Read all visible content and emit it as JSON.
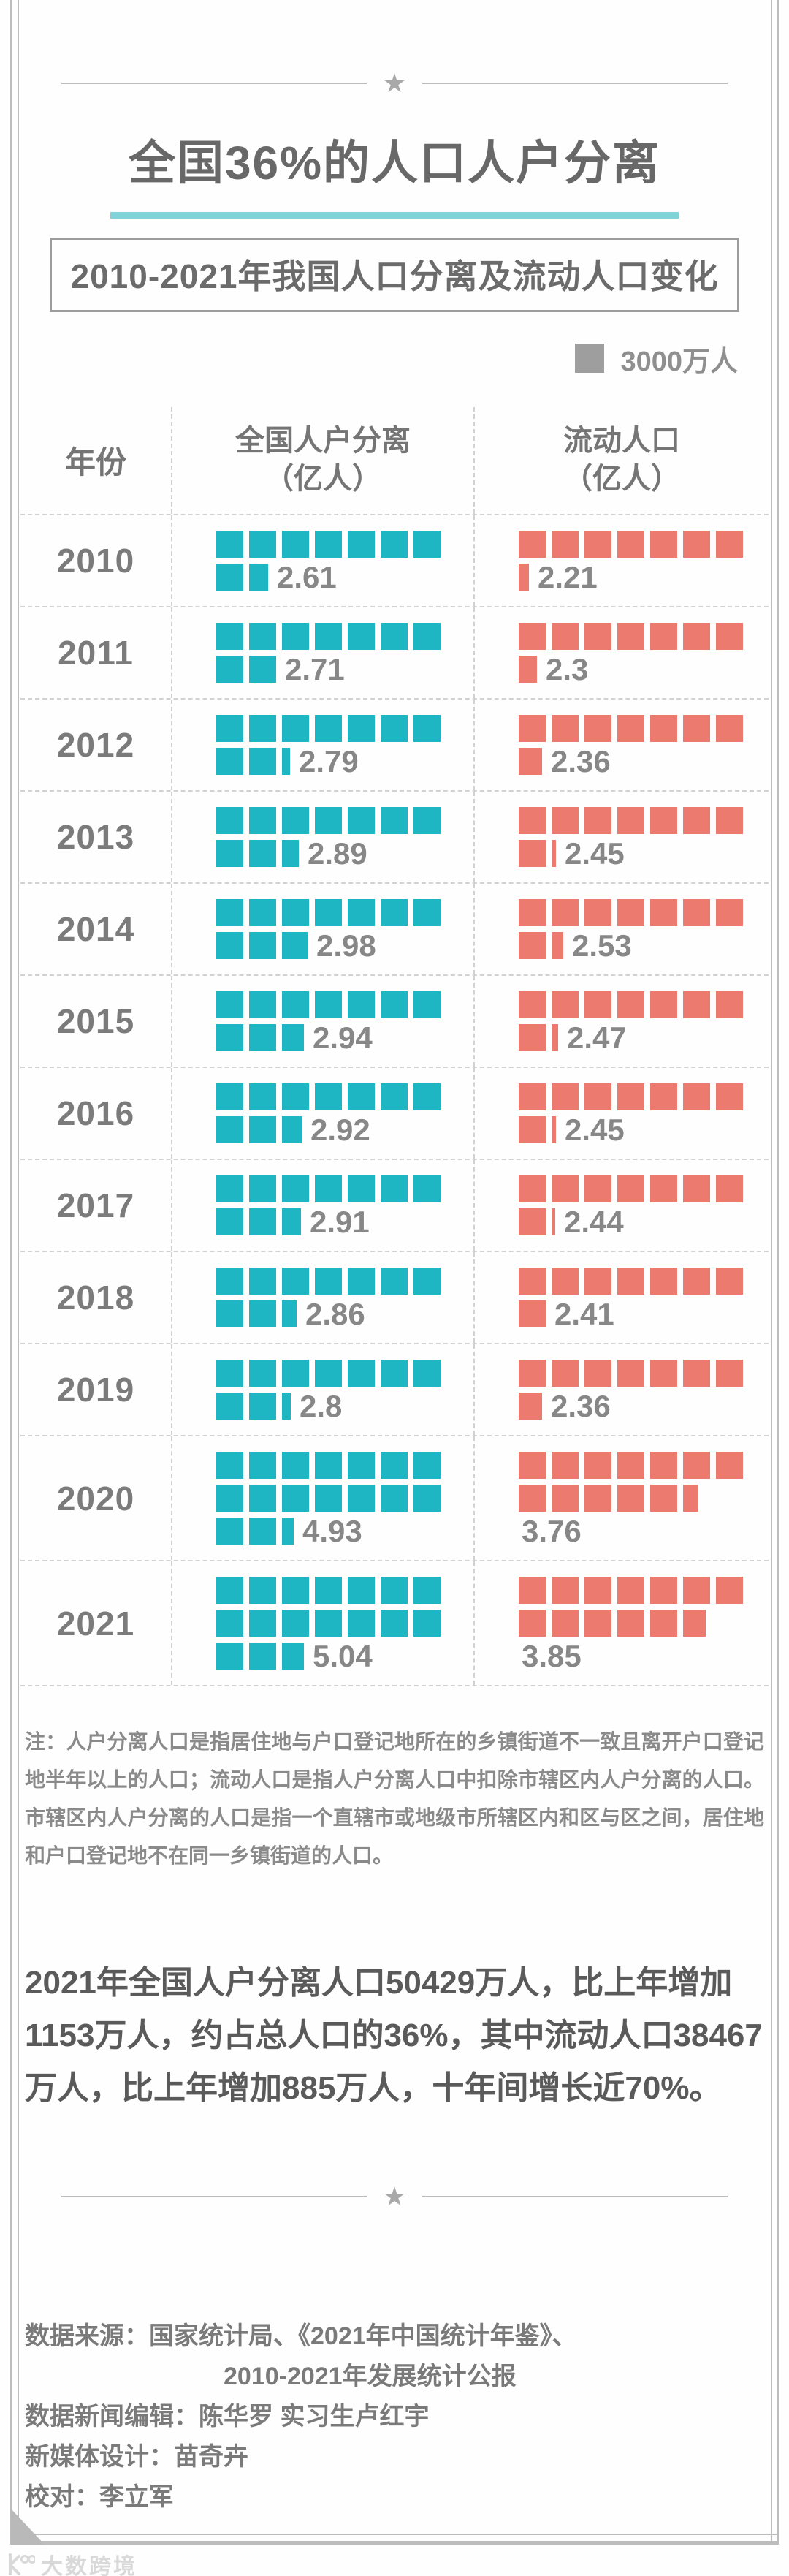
{
  "header": {
    "title": "全国36%的人口人户分离",
    "subtitle": "2010-2021年我国人口分离及流动人口变化",
    "legend_label": "3000万人",
    "star": "★"
  },
  "colors": {
    "separated_teal": "#1fb6c4",
    "migrant_red": "#ed7a6e",
    "legend_gray": "#9e9e9e",
    "title_underline_teal": "#82d2d9"
  },
  "table_header": {
    "year": "年份",
    "col1_name": "全国人户分离",
    "col1_unit": "（亿人）",
    "col2_name": "流动人口",
    "col2_unit": "（亿人）"
  },
  "chart_data": {
    "type": "pictogram-table",
    "title": "2010-2021年我国人口分离及流动人口变化",
    "unit_per_square_label": "3000万人",
    "unit_value_yi": 0.3,
    "squares_per_row": 7,
    "categories": [
      "2010",
      "2011",
      "2012",
      "2013",
      "2014",
      "2015",
      "2016",
      "2017",
      "2018",
      "2019",
      "2020",
      "2021"
    ],
    "series": [
      {
        "name": "全国人户分离（亿人）",
        "color": "#1fb6c4",
        "values": [
          2.61,
          2.71,
          2.79,
          2.89,
          2.98,
          2.94,
          2.92,
          2.91,
          2.86,
          2.8,
          4.93,
          5.04
        ]
      },
      {
        "name": "流动人口（亿人）",
        "color": "#ed7a6e",
        "values": [
          2.21,
          2.3,
          2.36,
          2.45,
          2.53,
          2.47,
          2.45,
          2.44,
          2.41,
          2.36,
          3.76,
          3.85
        ]
      }
    ]
  },
  "note": "注：人户分离人口是指居住地与户口登记地所在的乡镇街道不一致且离开户口登记地半年以上的人口；流动人口是指人户分离人口中扣除市辖区内人户分离的人口。市辖区内人户分离的人口是指一个直辖市或地级市所辖区内和区与区之间，居住地和户口登记地不在同一乡镇街道的人口。",
  "summary": "2021年全国人户分离人口50429万人，比上年增加1153万人，约占总人口的36%，其中流动人口38467万人，比上年增加885万人，十年间增长近70%。",
  "footer": {
    "source_line1": "数据来源：国家统计局、《2021年中国统计年鉴》、",
    "source_line2": "2010-2021年发展统计公报",
    "editor": "数据新闻编辑：陈华罗 实习生卢红宇",
    "design": "新媒体设计：苗奇卉",
    "proofread": "校对：李立军"
  },
  "watermark": "大数跨境"
}
